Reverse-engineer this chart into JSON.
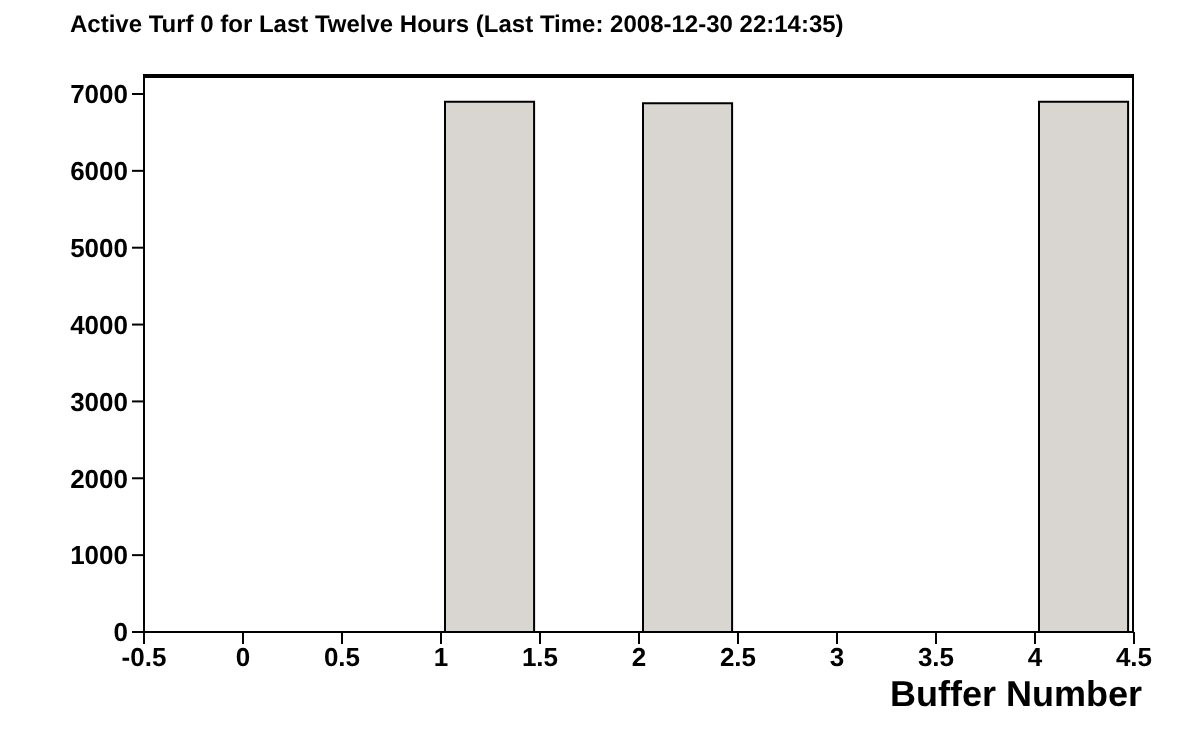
{
  "chart_data": {
    "type": "histogram",
    "title": "Active Turf 0 for Last Twelve Hours (Last Time: 2008-12-30 22:14:35)",
    "xlabel": "Buffer Number",
    "bins": [
      -0.5,
      0,
      0.5,
      1,
      1.5,
      2,
      2.5,
      3,
      3.5,
      4,
      4.5
    ],
    "values": [
      0,
      0,
      0,
      6900,
      0,
      6880,
      0,
      0,
      0,
      6900
    ],
    "color": "#d9d5d0",
    "xlim": [
      -0.5,
      4.5
    ],
    "xticks": [
      -0.5,
      0,
      0.5,
      1,
      1.5,
      2,
      2.5,
      3,
      3.5,
      4,
      4.5
    ],
    "ylim": [
      0,
      7260
    ],
    "yticks": [
      0,
      1000,
      2000,
      3000,
      4000,
      5000,
      6000,
      7000
    ],
    "grid": false,
    "legend": false
  }
}
